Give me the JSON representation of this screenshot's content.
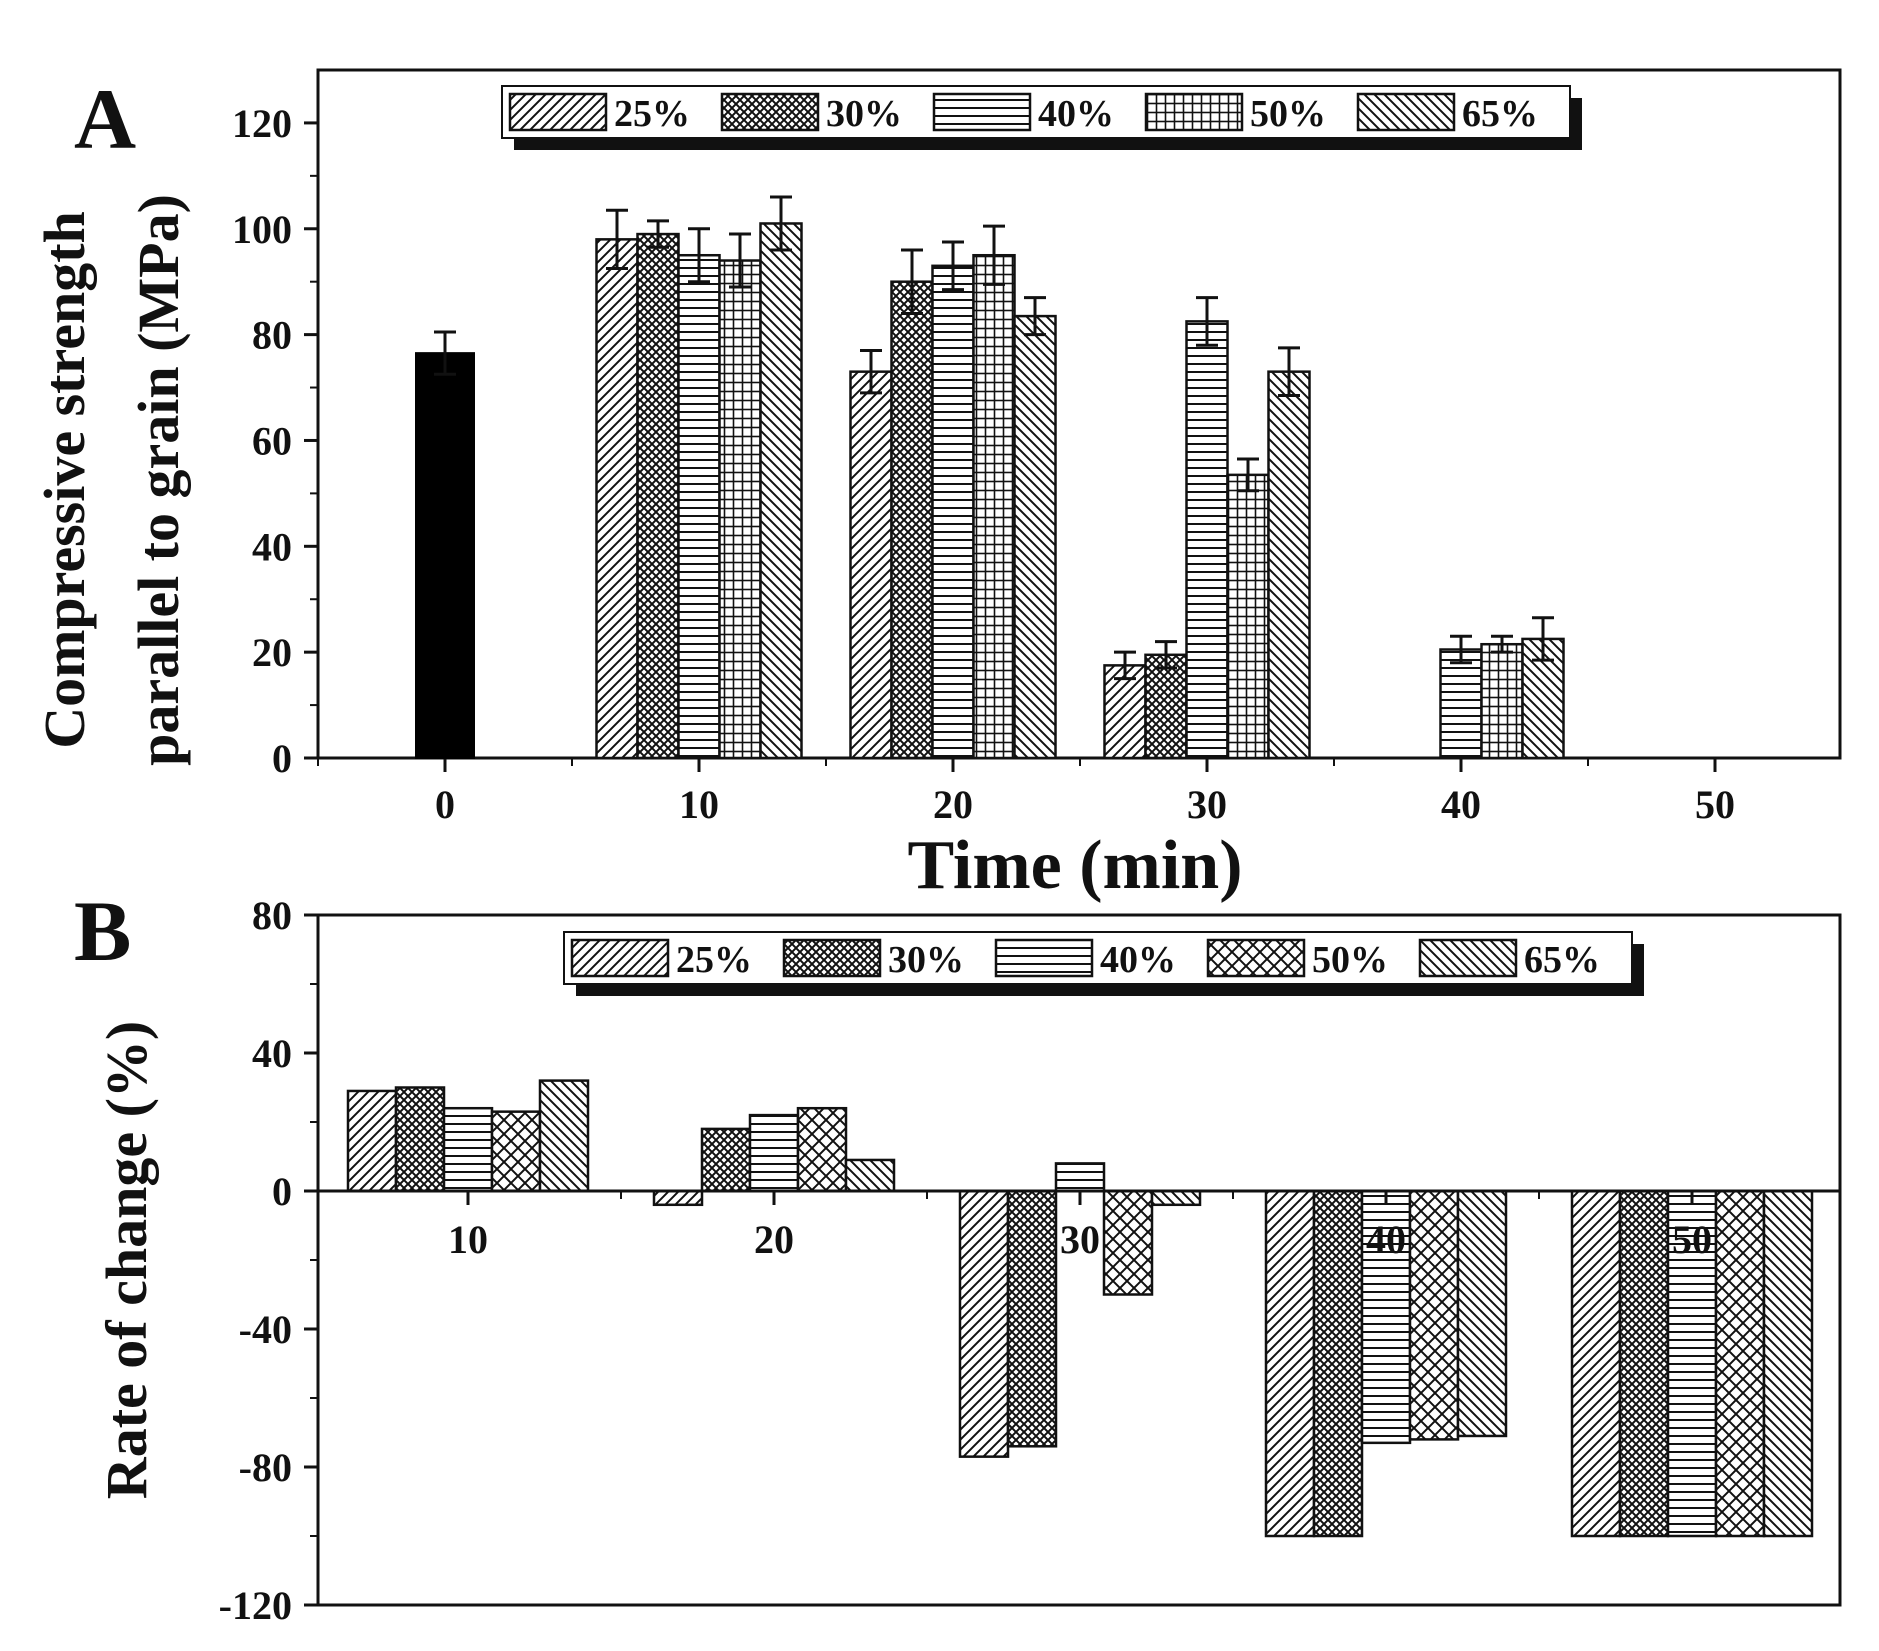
{
  "chart_data": [
    {
      "panel": "A",
      "type": "bar",
      "xlabel": "Time (min)",
      "ylabel_lines": [
        "Compressive strength",
        "parallel to grain (MPa)"
      ],
      "x_ticks": [
        "0",
        "10",
        "20",
        "30",
        "40",
        "50"
      ],
      "y_ticks": [
        "0",
        "20",
        "40",
        "60",
        "80",
        "100",
        "120"
      ],
      "ylim": [
        0,
        130
      ],
      "legend": [
        "25%",
        "30%",
        "40%",
        "50%",
        "65%"
      ],
      "control": {
        "x": 0,
        "value": 76.5,
        "error": 4
      },
      "categories": [
        10,
        20,
        30,
        40,
        50
      ],
      "series": [
        {
          "name": "25%",
          "values": [
            98,
            73,
            17.5,
            null,
            null
          ],
          "errors": [
            5.5,
            4,
            2.5,
            null,
            null
          ]
        },
        {
          "name": "30%",
          "values": [
            99,
            90,
            19.5,
            null,
            null
          ],
          "errors": [
            2.5,
            6,
            2.5,
            null,
            null
          ]
        },
        {
          "name": "40%",
          "values": [
            95,
            93,
            82.5,
            20.5,
            null
          ],
          "errors": [
            5,
            4.5,
            4.5,
            2.5,
            null
          ]
        },
        {
          "name": "50%",
          "values": [
            94,
            95,
            53.5,
            21.5,
            null
          ],
          "errors": [
            5,
            5.5,
            3,
            1.5,
            null
          ]
        },
        {
          "name": "65%",
          "values": [
            101,
            83.5,
            73,
            22.5,
            null
          ],
          "errors": [
            5,
            3.5,
            4.5,
            4,
            null
          ]
        }
      ]
    },
    {
      "panel": "B",
      "type": "bar",
      "xlabel": "",
      "ylabel": "Rate of change (%)",
      "x_ticks": [
        "10",
        "20",
        "30",
        "40",
        "50"
      ],
      "y_ticks": [
        "80",
        "40",
        "0",
        "-40",
        "-80",
        "-120"
      ],
      "ylim": [
        -120,
        80
      ],
      "legend": [
        "25%",
        "30%",
        "40%",
        "50%",
        "65%"
      ],
      "categories": [
        10,
        20,
        30,
        40,
        50
      ],
      "series": [
        {
          "name": "25%",
          "values": [
            29,
            -4,
            -77,
            -100,
            -100
          ]
        },
        {
          "name": "30%",
          "values": [
            30,
            18,
            -74,
            -100,
            -100
          ]
        },
        {
          "name": "40%",
          "values": [
            24,
            22,
            8,
            -73,
            -100
          ]
        },
        {
          "name": "50%",
          "values": [
            23,
            24,
            -30,
            -72,
            -100
          ]
        },
        {
          "name": "65%",
          "values": [
            32,
            9,
            -4,
            -71,
            -100
          ]
        }
      ]
    }
  ]
}
